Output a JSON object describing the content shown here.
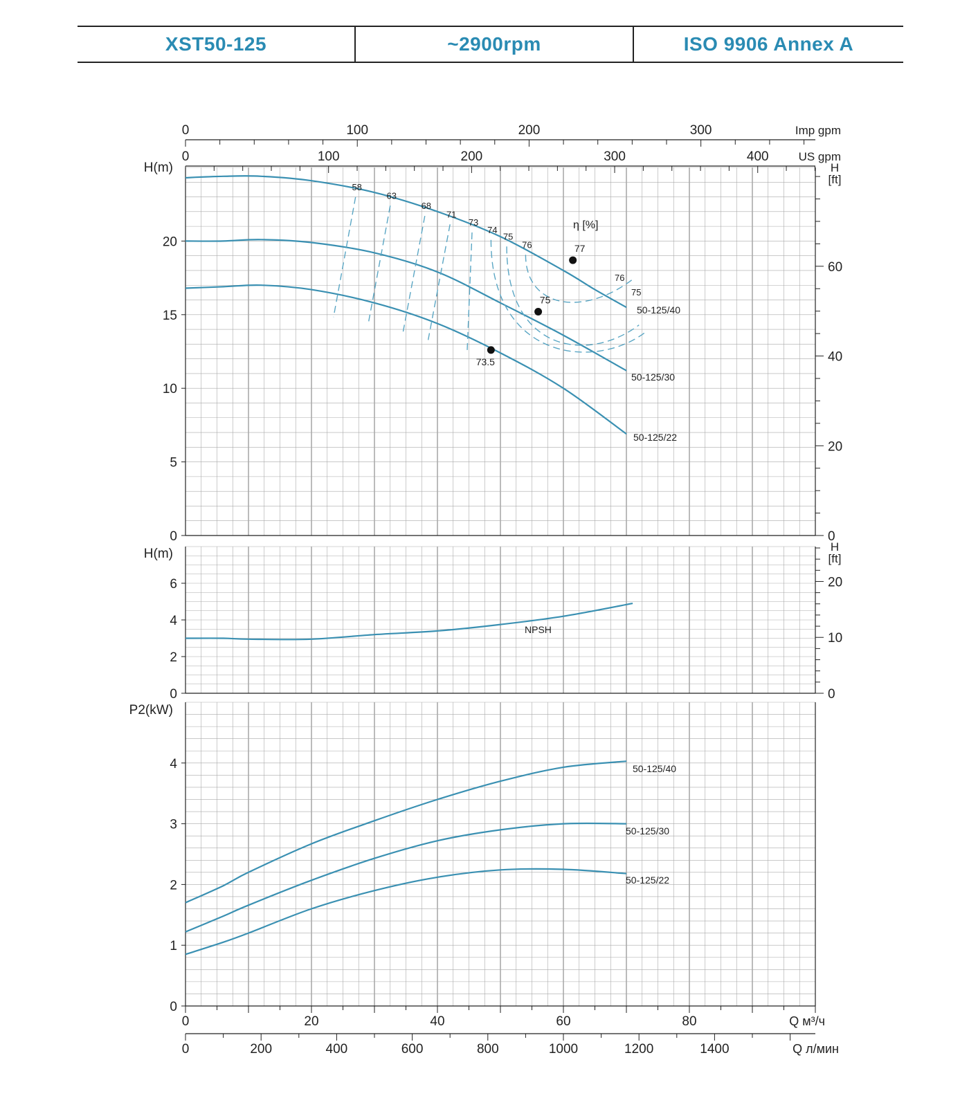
{
  "header": {
    "model": "XST50-125",
    "speed": "~2900rpm",
    "standard": "ISO 9906   Annex A"
  },
  "colors": {
    "curve": "#3a90b2",
    "curve_dashed": "#5aa6c4",
    "grid": "#a9a9a9",
    "axis": "#222222",
    "header_text": "#2a8bb3"
  },
  "chart_data": [
    {
      "type": "line",
      "panel": "head",
      "ylabel": "H(m)",
      "ylabel_right": "H\n[ft]",
      "ylim": [
        0,
        25
      ],
      "xlim": [
        0,
        100
      ],
      "yticks": [
        0,
        5,
        10,
        15,
        20
      ],
      "yticks_right_ft": [
        0,
        20,
        40,
        60
      ],
      "top_axes": [
        {
          "label": "US gpm",
          "ticks": [
            0,
            100,
            200,
            300,
            400
          ]
        },
        {
          "label": "Imp gpm",
          "ticks": [
            0,
            100,
            200,
            300
          ]
        }
      ],
      "series": [
        {
          "name": "50-125/40",
          "x": [
            0,
            6,
            12,
            20,
            30,
            40,
            50,
            60,
            65,
            70
          ],
          "y": [
            24.3,
            24.4,
            24.4,
            24.1,
            23.3,
            22.0,
            20.3,
            18.0,
            16.7,
            15.5
          ]
        },
        {
          "name": "50-125/30",
          "x": [
            0,
            6,
            12,
            20,
            30,
            40,
            50,
            60,
            70
          ],
          "y": [
            20.0,
            20.0,
            20.1,
            19.9,
            19.2,
            17.9,
            15.8,
            13.6,
            11.2
          ]
        },
        {
          "name": "50-125/22",
          "x": [
            0,
            6,
            12,
            20,
            30,
            40,
            50,
            60,
            70
          ],
          "y": [
            16.8,
            16.9,
            17.0,
            16.7,
            15.8,
            14.4,
            12.4,
            10.0,
            6.9
          ]
        }
      ],
      "efficiency_label": "η [%]",
      "efficiency_labels": [
        "58",
        "63",
        "68",
        "71",
        "73",
        "74",
        "75",
        "76"
      ],
      "efficiency_right_labels": [
        "76",
        "75"
      ],
      "bep_points": [
        {
          "label": "77",
          "x": 61.5,
          "y": 18.7
        },
        {
          "label": "75",
          "x": 56,
          "y": 15.2
        },
        {
          "label": "73.5",
          "x": 48.5,
          "y": 12.6
        }
      ]
    },
    {
      "type": "line",
      "panel": "npsh",
      "ylabel": "H(m)",
      "ylabel_right": "H\n[ft]",
      "ylim": [
        0,
        8
      ],
      "xlim": [
        0,
        100
      ],
      "yticks": [
        0,
        2,
        4,
        6
      ],
      "yticks_right_ft": [
        0,
        10,
        20
      ],
      "series": [
        {
          "name": "NPSH",
          "x": [
            0,
            6,
            10,
            20,
            30,
            40,
            50,
            60,
            71
          ],
          "y": [
            3.0,
            3.0,
            2.95,
            2.95,
            3.2,
            3.4,
            3.75,
            4.2,
            4.9
          ]
        }
      ]
    },
    {
      "type": "line",
      "panel": "power",
      "ylabel": "P2(kW)",
      "ylim": [
        0,
        5
      ],
      "xlim": [
        0,
        100
      ],
      "yticks": [
        0,
        1,
        2,
        3,
        4
      ],
      "xlabel": "Q  м³/ч",
      "xticks": [
        0,
        20,
        40,
        60,
        80
      ],
      "xlabel2": "Q  л/мин",
      "xticks2": [
        0,
        200,
        400,
        600,
        800,
        1000,
        1200,
        1400
      ],
      "series": [
        {
          "name": "50-125/40",
          "x": [
            0,
            6,
            10,
            20,
            30,
            40,
            50,
            60,
            70
          ],
          "y": [
            1.7,
            1.98,
            2.2,
            2.67,
            3.05,
            3.4,
            3.7,
            3.93,
            4.03
          ]
        },
        {
          "name": "50-125/30",
          "x": [
            0,
            6,
            10,
            20,
            30,
            40,
            50,
            60,
            70
          ],
          "y": [
            1.22,
            1.48,
            1.66,
            2.07,
            2.43,
            2.72,
            2.9,
            3.0,
            3.0
          ]
        },
        {
          "name": "50-125/22",
          "x": [
            0,
            6,
            10,
            20,
            30,
            40,
            50,
            60,
            70
          ],
          "y": [
            0.85,
            1.05,
            1.2,
            1.6,
            1.9,
            2.12,
            2.24,
            2.25,
            2.18
          ]
        }
      ]
    }
  ]
}
